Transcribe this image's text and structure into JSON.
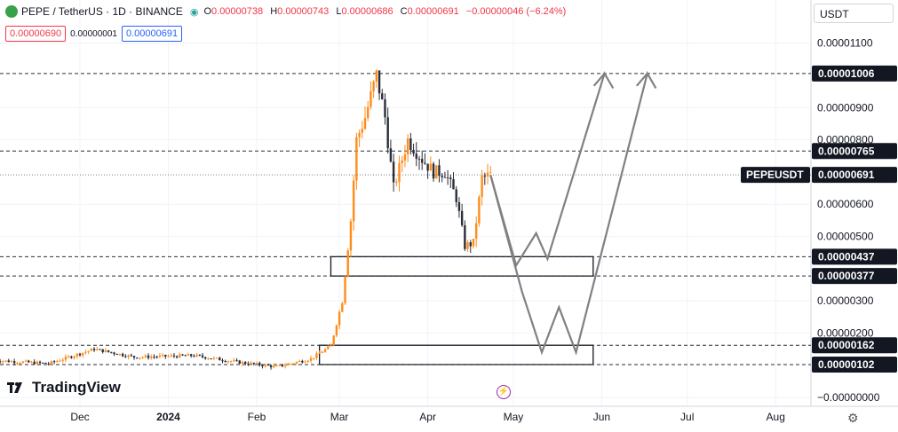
{
  "header": {
    "symbol": "PEPE / TetherUS · 1D · BINANCE",
    "eye_icon": "eye-icon",
    "ohlc": {
      "o_label": "O",
      "o": "0.00000738",
      "h_label": "H",
      "h": "0.00000743",
      "l_label": "L",
      "l": "0.00000686",
      "c_label": "C",
      "c": "0.00000691",
      "change": "−0.00000046 (−6.24%)"
    }
  },
  "quote": {
    "sell": "0.00000690",
    "spread": "0.00000001",
    "buy": "0.00000691"
  },
  "currency": "USDT",
  "logo_text": "TradingView",
  "colors": {
    "up": "#ff8c1a",
    "down": "#2a2e39",
    "price_tag_bg": "#131722",
    "grid": "#f0f3fa",
    "arrow": "#808080"
  },
  "chart_data": {
    "type": "candlestick",
    "x_ticks": [
      "Dec",
      "2024",
      "Feb",
      "Mar",
      "Apr",
      "May",
      "Jun",
      "Jul",
      "Aug"
    ],
    "y_ticks": [
      "0.00001100",
      "0.00000900",
      "0.00000800",
      "0.00000600",
      "0.00000500",
      "0.00000300",
      "0.00000200",
      "−0.00000000"
    ],
    "ylim": [
      -0.0,
      1.15e-05
    ],
    "price_levels": [
      {
        "label": "0.00001006",
        "value": 1.006e-05
      },
      {
        "label": "0.00000765",
        "value": 7.65e-06
      },
      {
        "label": "0.00000437",
        "value": 4.37e-06
      },
      {
        "label": "0.00000377",
        "value": 3.77e-06
      },
      {
        "label": "0.00000162",
        "value": 1.62e-06
      },
      {
        "label": "0.00000102",
        "value": 1.02e-06
      }
    ],
    "current_price": {
      "symbol": "PEPEUSDT",
      "label": "0.00000691",
      "value": 6.91e-06
    },
    "zones": [
      {
        "from": 3.77e-06,
        "to": 4.37e-06,
        "start": "2024-02-27",
        "end": "2024-05-29"
      },
      {
        "from": 1.02e-06,
        "to": 1.62e-06,
        "start": "2024-02-23",
        "end": "2024-05-29"
      }
    ],
    "projections": [
      {
        "points": [
          [
            "2024-04-23",
            6.91e-06
          ],
          [
            "2024-05-02",
            4.1e-06
          ],
          [
            "2024-05-09",
            5.1e-06
          ],
          [
            "2024-05-13",
            4.3e-06
          ],
          [
            "2024-06-02",
            1.006e-05
          ],
          [
            "2024-06-05",
            9.6e-06
          ]
        ]
      },
      {
        "points": [
          [
            "2024-04-23",
            6.91e-06
          ],
          [
            "2024-05-04",
            3.3e-06
          ],
          [
            "2024-05-11",
            1.4e-06
          ],
          [
            "2024-05-17",
            2.8e-06
          ],
          [
            "2024-05-23",
            1.4e-06
          ],
          [
            "2024-06-17",
            1.006e-05
          ],
          [
            "2024-06-20",
            9.6e-06
          ]
        ]
      }
    ],
    "series_keypoints": [
      [
        "2023-11-01",
        1.15e-06
      ],
      [
        "2023-11-20",
        1.05e-06
      ],
      [
        "2023-12-06",
        1.5e-06
      ],
      [
        "2023-12-20",
        1.25e-06
      ],
      [
        "2024-01-10",
        1.3e-06
      ],
      [
        "2024-01-25",
        1.1e-06
      ],
      [
        "2024-02-08",
        9.5e-07
      ],
      [
        "2024-02-20",
        1.2e-06
      ],
      [
        "2024-02-27",
        1.6e-06
      ],
      [
        "2024-03-02",
        3e-06
      ],
      [
        "2024-03-05",
        5.5e-06
      ],
      [
        "2024-03-07",
        8e-06
      ],
      [
        "2024-03-10",
        8.7e-06
      ],
      [
        "2024-03-14",
        1e-05
      ],
      [
        "2024-03-17",
        8.7e-06
      ],
      [
        "2024-03-20",
        6.5e-06
      ],
      [
        "2024-03-25",
        8e-06
      ],
      [
        "2024-03-30",
        7.4e-06
      ],
      [
        "2024-04-03",
        7e-06
      ],
      [
        "2024-04-07",
        7e-06
      ],
      [
        "2024-04-11",
        6.2e-06
      ],
      [
        "2024-04-14",
        4.7e-06
      ],
      [
        "2024-04-17",
        4.8e-06
      ],
      [
        "2024-04-20",
        6.8e-06
      ],
      [
        "2024-04-23",
        6.91e-06
      ]
    ]
  }
}
